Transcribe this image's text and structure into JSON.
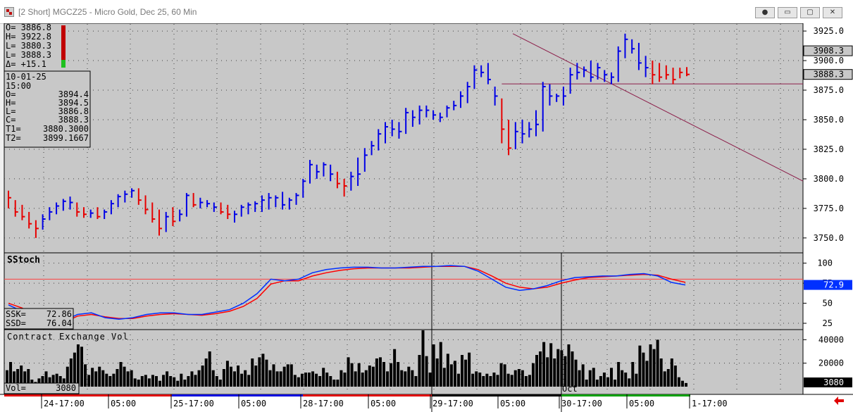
{
  "window": {
    "title": "[2 Short]  MGCZ25 - Micro Gold, Dec 25, 60 Min",
    "buttons": {
      "link": "●",
      "minimize": "▭",
      "restore": "▢",
      "close": "✕"
    }
  },
  "colors": {
    "up": "#0000e6",
    "down": "#e60000",
    "background": "#c8c8c8",
    "grid": "#404040",
    "trendline": "#8c1e4a",
    "ssk": "#0030ff",
    "ssd": "#ff0000",
    "volume": "#000000"
  },
  "readouts": {
    "ohlc_lines": [
      "O=  3886.8",
      "H=  3922.8",
      "L=  3880.3",
      "L=  3888.3",
      "Δ=   +15.1"
    ],
    "box_date": "10-01-25",
    "box_time": "15:00",
    "box_lines": [
      [
        "O=",
        "3894.4"
      ],
      [
        "H=",
        "3894.5"
      ],
      [
        "L=",
        "3886.8"
      ],
      [
        "C=",
        "3888.3"
      ],
      [
        "T1=",
        "3880.3000"
      ],
      [
        "T2=",
        "3899.1667"
      ]
    ],
    "ssk_label": "SSK=",
    "ssk_value": "72.86",
    "ssd_label": "SSD=",
    "ssd_value": "76.04",
    "vol_label": "Vol=",
    "vol_value": "3080"
  },
  "chart_data": [
    {
      "type": "bar",
      "subtype": "ohlc",
      "instrument": "MGCZ25",
      "ylim": [
        3738,
        3931
      ],
      "yticks": [
        "3925.0",
        "3900.0",
        "3875.0",
        "3850.0",
        "3825.0",
        "3800.0",
        "3775.0",
        "3750.0"
      ],
      "last_price_tag": "3888.3",
      "level_tag": "3908.3",
      "horizontal_level": 3880.3,
      "grid": true,
      "trendline": {
        "from": [
          73,
          3922.8
        ],
        "to": [
          95,
          3858
        ]
      },
      "bars": [
        [
          3790,
          3775,
          3784,
          0
        ],
        [
          3782,
          3768,
          3772,
          0
        ],
        [
          3778,
          3765,
          3768,
          0
        ],
        [
          3772,
          3758,
          3762,
          0
        ],
        [
          3765,
          3750,
          3758,
          0
        ],
        [
          3770,
          3757,
          3766,
          1
        ],
        [
          3776,
          3765,
          3772,
          1
        ],
        [
          3780,
          3770,
          3777,
          1
        ],
        [
          3783,
          3773,
          3781,
          1
        ],
        [
          3785,
          3774,
          3780,
          1
        ],
        [
          3780,
          3768,
          3772,
          0
        ],
        [
          3776,
          3767,
          3770,
          0
        ],
        [
          3774,
          3767,
          3771,
          1
        ],
        [
          3776,
          3766,
          3768,
          0
        ],
        [
          3774,
          3766,
          3772,
          1
        ],
        [
          3782,
          3770,
          3779,
          1
        ],
        [
          3787,
          3776,
          3785,
          1
        ],
        [
          3790,
          3780,
          3787,
          1
        ],
        [
          3792,
          3784,
          3790,
          1
        ],
        [
          3792,
          3778,
          3782,
          0
        ],
        [
          3786,
          3770,
          3774,
          0
        ],
        [
          3780,
          3763,
          3766,
          0
        ],
        [
          3774,
          3752,
          3758,
          0
        ],
        [
          3772,
          3755,
          3768,
          1
        ],
        [
          3776,
          3760,
          3764,
          0
        ],
        [
          3774,
          3764,
          3770,
          1
        ],
        [
          3788,
          3768,
          3786,
          1
        ],
        [
          3788,
          3776,
          3778,
          0
        ],
        [
          3784,
          3775,
          3780,
          1
        ],
        [
          3782,
          3776,
          3779,
          1
        ],
        [
          3780,
          3772,
          3776,
          1
        ],
        [
          3780,
          3770,
          3772,
          0
        ],
        [
          3778,
          3766,
          3770,
          0
        ],
        [
          3773,
          3763,
          3770,
          1
        ],
        [
          3778,
          3768,
          3776,
          1
        ],
        [
          3780,
          3770,
          3778,
          1
        ],
        [
          3781,
          3772,
          3779,
          1
        ],
        [
          3786,
          3772,
          3782,
          1
        ],
        [
          3788,
          3774,
          3784,
          1
        ],
        [
          3786,
          3776,
          3784,
          1
        ],
        [
          3789,
          3774,
          3778,
          1
        ],
        [
          3784,
          3774,
          3782,
          1
        ],
        [
          3788,
          3778,
          3786,
          1
        ],
        [
          3800,
          3784,
          3798,
          1
        ],
        [
          3816,
          3796,
          3812,
          1
        ],
        [
          3812,
          3800,
          3806,
          1
        ],
        [
          3814,
          3802,
          3812,
          1
        ],
        [
          3812,
          3798,
          3804,
          1
        ],
        [
          3806,
          3792,
          3796,
          0
        ],
        [
          3800,
          3785,
          3794,
          0
        ],
        [
          3806,
          3790,
          3802,
          1
        ],
        [
          3818,
          3794,
          3804,
          1
        ],
        [
          3826,
          3806,
          3820,
          1
        ],
        [
          3832,
          3820,
          3828,
          1
        ],
        [
          3842,
          3824,
          3838,
          1
        ],
        [
          3848,
          3830,
          3844,
          1
        ],
        [
          3850,
          3836,
          3842,
          1
        ],
        [
          3848,
          3834,
          3840,
          1
        ],
        [
          3860,
          3838,
          3856,
          1
        ],
        [
          3858,
          3844,
          3852,
          1
        ],
        [
          3862,
          3846,
          3858,
          1
        ],
        [
          3862,
          3852,
          3858,
          1
        ],
        [
          3858,
          3850,
          3854,
          1
        ],
        [
          3856,
          3848,
          3852,
          1
        ],
        [
          3862,
          3852,
          3860,
          1
        ],
        [
          3866,
          3858,
          3862,
          1
        ],
        [
          3874,
          3860,
          3870,
          1
        ],
        [
          3882,
          3864,
          3878,
          1
        ],
        [
          3896,
          3876,
          3892,
          1
        ],
        [
          3896,
          3886,
          3890,
          1
        ],
        [
          3898,
          3880,
          3884,
          1
        ],
        [
          3878,
          3862,
          3870,
          1
        ],
        [
          3868,
          3830,
          3842,
          0
        ],
        [
          3850,
          3820,
          3826,
          0
        ],
        [
          3848,
          3825,
          3840,
          1
        ],
        [
          3850,
          3830,
          3838,
          1
        ],
        [
          3848,
          3835,
          3842,
          1
        ],
        [
          3858,
          3836,
          3846,
          1
        ],
        [
          3882,
          3840,
          3878,
          1
        ],
        [
          3880,
          3862,
          3870,
          1
        ],
        [
          3872,
          3865,
          3870,
          1
        ],
        [
          3878,
          3862,
          3870,
          1
        ],
        [
          3894,
          3872,
          3888,
          1
        ],
        [
          3898,
          3884,
          3890,
          1
        ],
        [
          3895,
          3886,
          3892,
          1
        ],
        [
          3900,
          3882,
          3886,
          1
        ],
        [
          3898,
          3884,
          3894,
          1
        ],
        [
          3892,
          3882,
          3888,
          1
        ],
        [
          3890,
          3880,
          3886,
          1
        ],
        [
          3912,
          3882,
          3908,
          1
        ],
        [
          3922.8,
          3902,
          3918,
          1
        ],
        [
          3918,
          3906,
          3910,
          1
        ],
        [
          3915,
          3892,
          3898,
          1
        ],
        [
          3904,
          3886,
          3894,
          1
        ],
        [
          3900,
          3880,
          3888,
          0
        ],
        [
          3898,
          3882,
          3886,
          0
        ],
        [
          3896,
          3884,
          3888,
          0
        ],
        [
          3894,
          3880,
          3884,
          0
        ],
        [
          3894,
          3885,
          3890,
          0
        ],
        [
          3894.5,
          3886.8,
          3888.3,
          0
        ]
      ]
    },
    {
      "type": "line",
      "title": "SStoch",
      "ylim": [
        18,
        112
      ],
      "yticks": [
        "100",
        "75",
        "50",
        "25"
      ],
      "reference_level": 80,
      "last_value_tag": "72.9",
      "series": [
        {
          "name": "SSK",
          "values": [
            48,
            40,
            28,
            26,
            28,
            36,
            38,
            32,
            30,
            32,
            36,
            38,
            38,
            36,
            36,
            39,
            42,
            50,
            62,
            80,
            78,
            80,
            88,
            92,
            94,
            95,
            95,
            94,
            94,
            95,
            96,
            96,
            97,
            96,
            90,
            80,
            70,
            66,
            68,
            72,
            78,
            82,
            83,
            84,
            84,
            86,
            87,
            84,
            76,
            72.86
          ]
        },
        {
          "name": "SSD",
          "values": [
            50,
            44,
            30,
            27,
            26,
            34,
            36,
            33,
            31,
            31,
            34,
            36,
            37,
            36,
            35,
            37,
            40,
            46,
            56,
            74,
            78,
            78,
            84,
            88,
            91,
            93,
            94,
            94,
            94,
            94,
            95,
            96,
            96,
            96,
            92,
            84,
            75,
            70,
            68,
            70,
            75,
            79,
            82,
            83,
            84,
            85,
            86,
            85,
            80,
            76.04
          ]
        }
      ]
    },
    {
      "type": "bar",
      "title": "Contract Exchange Vol",
      "ylim": [
        0,
        48000
      ],
      "yticks": [
        "40000",
        "20000"
      ],
      "last_value_tag": "3080",
      "values": [
        14000,
        21000,
        13000,
        15000,
        18000,
        13000,
        15000,
        6000,
        4000,
        7000,
        9000,
        13000,
        8000,
        10000,
        11000,
        9000,
        7000,
        17000,
        24000,
        29000,
        36000,
        34000,
        19000,
        10000,
        16000,
        13000,
        17000,
        14000,
        11000,
        9000,
        11000,
        15000,
        21000,
        17000,
        13000,
        14000,
        7000,
        6000,
        9000,
        10000,
        7000,
        10000,
        9000,
        5000,
        10000,
        13000,
        9000,
        8000,
        5000,
        11000,
        6000,
        9000,
        13000,
        10000,
        14000,
        18000,
        24000,
        30000,
        14000,
        9000,
        6000,
        15000,
        22000,
        17000,
        13000,
        18000,
        11000,
        14000,
        10000,
        24000,
        18000,
        25000,
        28000,
        23000,
        14000,
        19000,
        13000,
        13000,
        17000,
        19000,
        19000,
        10000,
        8000,
        11000,
        12000,
        12000,
        13000,
        11000,
        9000,
        16000,
        12000,
        9000,
        6000,
        6000,
        14000,
        12000,
        25000,
        20000,
        13000,
        20000,
        12000,
        14000,
        18000,
        17000,
        24000,
        25000,
        21000,
        13000,
        20000,
        32000,
        21000,
        14000,
        13000,
        17000,
        14000,
        9000,
        27000,
        48000,
        26000,
        12000,
        36000,
        24000,
        38000,
        16000,
        28000,
        19000,
        22000,
        11000,
        27000,
        23000,
        29000,
        11000,
        13000,
        12000,
        9000,
        11000,
        9000,
        12000,
        10000,
        20000,
        19000,
        11000,
        10000,
        14000,
        15000,
        14000,
        9000,
        10000,
        20000,
        27000,
        30000,
        38000,
        25000,
        37000,
        24000,
        32000,
        31000,
        26000,
        36000,
        30000,
        23000,
        14000,
        19000,
        6000,
        14000,
        16000,
        6000,
        9000,
        12000,
        8000,
        16000,
        6000,
        21000,
        14000,
        12000,
        7000,
        21000,
        11000,
        35000,
        29000,
        22000,
        36000,
        32000,
        40000,
        24000,
        13000,
        15000,
        24000,
        18000,
        8000,
        5000,
        3080
      ]
    },
    {
      "type": "table",
      "axis_labels": [
        "24-17:00",
        "05:00",
        "25-17:00",
        "05:00",
        "28-17:00",
        "05:00",
        "29-17:00",
        "05:00",
        "30-17:00",
        "05:00",
        "1-17:00"
      ],
      "month_marker": "Oct"
    }
  ]
}
